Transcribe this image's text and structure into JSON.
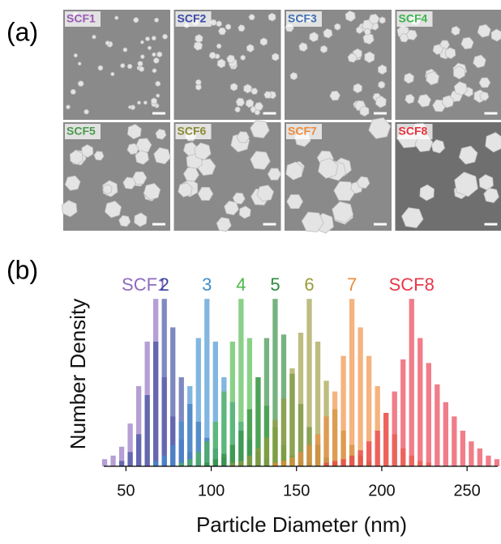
{
  "panel_a": {
    "label": "(a)",
    "images": [
      {
        "label": "SCF1",
        "color": "#9b59b6"
      },
      {
        "label": "SCF2",
        "color": "#3b4aa8"
      },
      {
        "label": "SCF3",
        "color": "#3f6fb0"
      },
      {
        "label": "SCF4",
        "color": "#3cb44b"
      },
      {
        "label": "SCF5",
        "color": "#4a9a4a"
      },
      {
        "label": "SCF6",
        "color": "#8a8a30"
      },
      {
        "label": "SCF7",
        "color": "#f08a3a"
      },
      {
        "label": "SCF8",
        "color": "#e8303a"
      }
    ]
  },
  "chart_data": {
    "type": "histogram",
    "panel_label": "(b)",
    "x_label": "Particle Diameter (nm)",
    "y_label": "Number Density",
    "xlim": [
      37,
      268
    ],
    "ylim": [
      0,
      100
    ],
    "xticks": [
      50,
      100,
      150,
      200,
      250
    ],
    "series": [
      {
        "name": "SCF1",
        "color": "#8e6bbf",
        "bins": [
          35,
          40,
          45,
          50,
          55,
          60,
          65,
          70,
          75,
          80,
          85,
          90,
          95,
          100
        ],
        "values": [
          4,
          6,
          11,
          24,
          45,
          70,
          94,
          50,
          28,
          15,
          8,
          4,
          2
        ]
      },
      {
        "name": "2",
        "color": "#3b4a9e",
        "bins": [
          45,
          50,
          55,
          60,
          65,
          70,
          75,
          80,
          85,
          90,
          95,
          100,
          105,
          110,
          115
        ],
        "values": [
          3,
          8,
          18,
          40,
          70,
          94,
          78,
          50,
          35,
          25,
          16,
          10,
          5,
          2
        ]
      },
      {
        "name": "3",
        "color": "#3f8fcf",
        "bins": [
          65,
          70,
          75,
          80,
          85,
          90,
          95,
          100,
          105,
          110,
          115,
          120,
          125,
          130,
          135,
          140
        ],
        "values": [
          3,
          6,
          12,
          25,
          45,
          72,
          94,
          70,
          50,
          36,
          25,
          15,
          8,
          4,
          2
        ]
      },
      {
        "name": "4",
        "color": "#4cb848",
        "bins": [
          80,
          85,
          90,
          95,
          100,
          105,
          110,
          115,
          120,
          125,
          130,
          135,
          140,
          145,
          150,
          155,
          160
        ],
        "values": [
          2,
          4,
          8,
          14,
          25,
          42,
          70,
          94,
          72,
          50,
          34,
          22,
          12,
          6,
          3,
          2
        ]
      },
      {
        "name": "5",
        "color": "#2e8b3e",
        "bins": [
          95,
          100,
          105,
          110,
          115,
          120,
          125,
          130,
          135,
          140,
          145,
          150,
          155,
          160,
          165,
          170,
          175
        ],
        "values": [
          2,
          4,
          7,
          12,
          20,
          32,
          50,
          72,
          94,
          74,
          52,
          35,
          22,
          12,
          5,
          2
        ]
      },
      {
        "name": "6",
        "color": "#9a9a3a",
        "bins": [
          110,
          115,
          120,
          125,
          130,
          135,
          140,
          145,
          150,
          155,
          160,
          165,
          170,
          175,
          180,
          185,
          190,
          195
        ],
        "values": [
          2,
          3,
          6,
          10,
          16,
          26,
          38,
          55,
          75,
          94,
          70,
          48,
          32,
          20,
          12,
          6,
          3
        ]
      },
      {
        "name": "7",
        "color": "#f08a3a",
        "bins": [
          135,
          140,
          145,
          150,
          155,
          160,
          165,
          170,
          175,
          180,
          185,
          190,
          195,
          200,
          205,
          210,
          215,
          220,
          225,
          230
        ],
        "values": [
          2,
          3,
          5,
          8,
          12,
          18,
          28,
          42,
          62,
          94,
          78,
          62,
          45,
          30,
          18,
          10,
          6,
          3,
          2
        ]
      },
      {
        "name": "SCF8",
        "color": "#e8384a",
        "bins": [
          165,
          170,
          175,
          180,
          185,
          190,
          195,
          200,
          205,
          210,
          215,
          220,
          225,
          230,
          235,
          240,
          245,
          250,
          255,
          260,
          265,
          270
        ],
        "values": [
          2,
          3,
          4,
          6,
          9,
          14,
          20,
          30,
          42,
          60,
          94,
          72,
          58,
          46,
          36,
          28,
          20,
          14,
          10,
          6,
          4
        ]
      }
    ]
  }
}
